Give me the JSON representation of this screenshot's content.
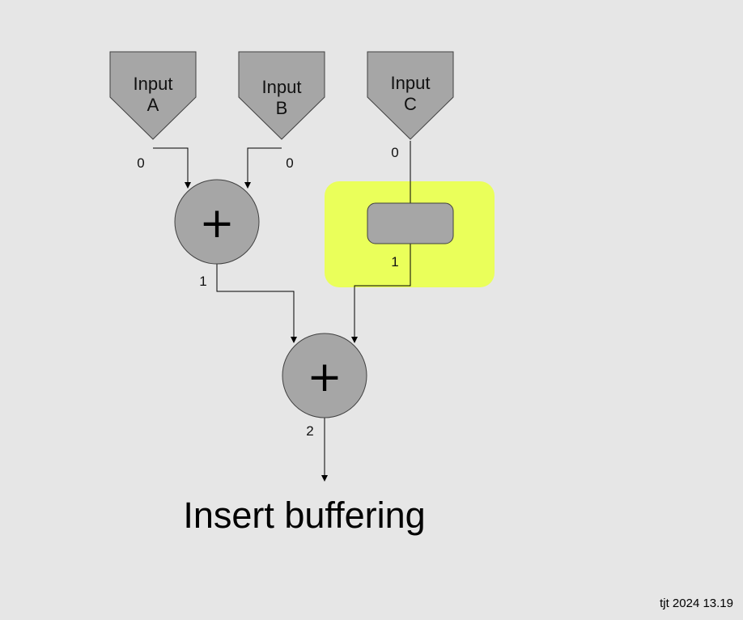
{
  "inputs": [
    {
      "line1": "Input",
      "line2": "A",
      "stage": "0"
    },
    {
      "line1": "Input",
      "line2": "B",
      "stage": "0"
    },
    {
      "line1": "Input",
      "line2": "C",
      "stage": "0"
    }
  ],
  "adders": [
    {
      "symbol": "+",
      "stage": "1"
    },
    {
      "symbol": "+",
      "stage": "2"
    }
  ],
  "buffer": {
    "stage": "1"
  },
  "caption": "Insert buffering",
  "footer": "tjt 2024 13.19",
  "colors": {
    "background": "#e6e6e6",
    "node_fill": "#a6a6a6",
    "highlight": "#eaff5a",
    "wire": "#000000"
  }
}
